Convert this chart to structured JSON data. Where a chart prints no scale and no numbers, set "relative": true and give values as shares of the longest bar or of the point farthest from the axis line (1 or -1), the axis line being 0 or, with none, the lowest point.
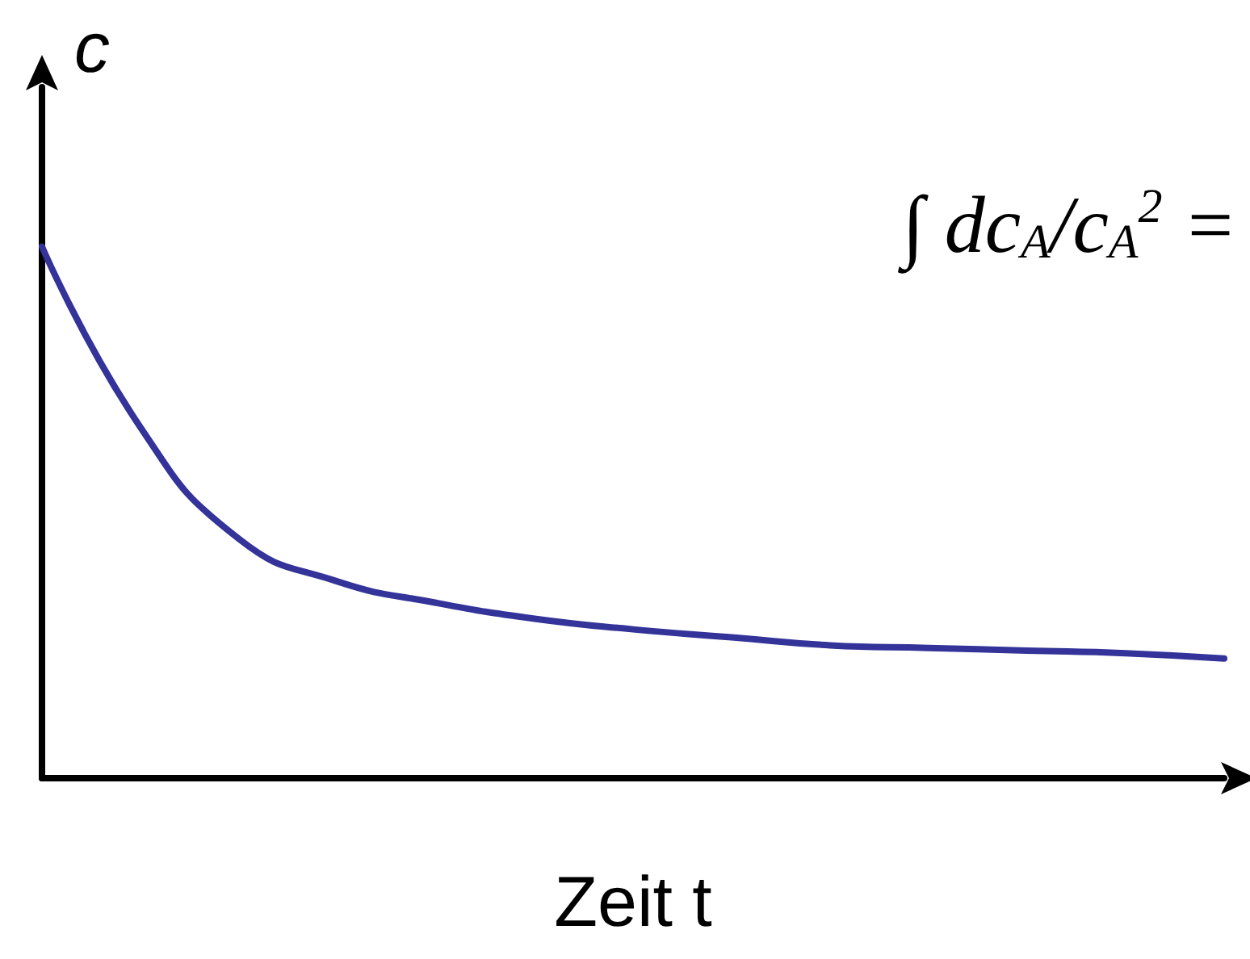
{
  "chart_data": {
    "type": "line",
    "relative": true,
    "xlabel": "Zeit t",
    "ylabel": "c",
    "categories": [
      null,
      null,
      null,
      null,
      null,
      null,
      null,
      null,
      null,
      null,
      null,
      null,
      null
    ],
    "series": [
      {
        "color": "#333399",
        "values": [
          1.0,
          0.66,
          0.45,
          0.37,
          0.33,
          0.3,
          0.28,
          0.265,
          0.25,
          0.245,
          0.24,
          0.235,
          0.225
        ]
      }
    ],
    "annotations": [
      "∫ dc$_{A}$/c$_{A}$$^{2}$ ="
    ],
    "marker": "none",
    "grid": false
  }
}
